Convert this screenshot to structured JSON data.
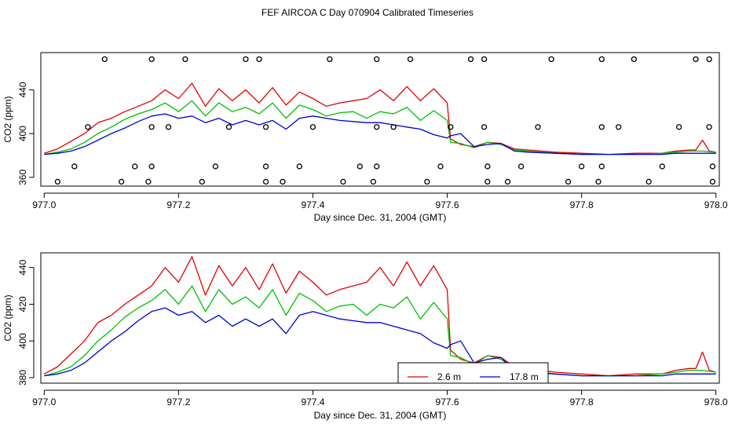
{
  "title": "FEF AIRCOA C  Day 070904  Calibrated Timeseries",
  "colors": {
    "red": "#e00000",
    "green": "#00c000",
    "blue": "#0000d0",
    "axis": "#000000"
  },
  "chart_data": [
    {
      "type": "line",
      "panel": "top",
      "xlabel": "Day since Dec. 31, 2004 (GMT)",
      "ylabel": "CO2 (ppm)",
      "xlim": [
        976.995,
        978.005
      ],
      "ylim": [
        352,
        474
      ],
      "x_ticks": [
        977.0,
        977.2,
        977.4,
        977.6,
        977.8,
        978.0
      ],
      "x_tick_labels": [
        "977.0",
        "977.2",
        "977.4",
        "977.6",
        "977.8",
        "978.0"
      ],
      "y_ticks": [
        360,
        400,
        440
      ],
      "y_tick_labels": [
        "360",
        "400",
        "440"
      ],
      "marker_rows_ppm": {
        "high": 468,
        "mid": 406,
        "low_a": 370,
        "low_b": 356
      },
      "markers": {
        "high": [
          977.09,
          977.16,
          977.21,
          977.3,
          977.32,
          977.425,
          977.495,
          977.545,
          977.635,
          977.655,
          977.755,
          977.83,
          977.878,
          977.97,
          977.99
        ],
        "mid": [
          977.065,
          977.16,
          977.185,
          977.275,
          977.33,
          977.4,
          977.495,
          977.52,
          977.605,
          977.655,
          977.735,
          977.83,
          977.855,
          977.945,
          977.99
        ],
        "low_a": [
          977.045,
          977.135,
          977.16,
          977.255,
          977.33,
          977.38,
          977.47,
          977.495,
          977.59,
          977.66,
          977.71,
          977.8,
          977.83,
          977.92,
          977.995
        ],
        "low_b": [
          977.02,
          977.115,
          977.155,
          977.235,
          977.33,
          977.355,
          977.445,
          977.49,
          977.57,
          977.66,
          977.69,
          977.78,
          977.825,
          977.9,
          977.995
        ]
      }
    },
    {
      "type": "line",
      "panel": "bottom",
      "xlabel": "Day since Dec. 31, 2004 (GMT)",
      "ylabel": "CO2 (ppm)",
      "xlim": [
        976.995,
        978.005
      ],
      "ylim": [
        377,
        448
      ],
      "x_ticks": [
        977.0,
        977.2,
        977.4,
        977.6,
        977.8,
        978.0
      ],
      "x_tick_labels": [
        "977.0",
        "977.2",
        "977.4",
        "977.6",
        "977.8",
        "978.0"
      ],
      "y_ticks": [
        380,
        400,
        420,
        440
      ],
      "y_tick_labels": [
        "380",
        "400",
        "420",
        "440"
      ],
      "legend": {
        "position": "bottom-center",
        "entries": [
          {
            "name": "2.6 m",
            "color": "#e00000"
          },
          {
            "name": "17.8 m",
            "color": "#0000d0"
          }
        ]
      }
    }
  ],
  "series": [
    {
      "name": "2.6 m",
      "color": "#e00000",
      "x": [
        977.0,
        977.02,
        977.04,
        977.06,
        977.08,
        977.1,
        977.12,
        977.14,
        977.16,
        977.18,
        977.2,
        977.22,
        977.24,
        977.26,
        977.28,
        977.3,
        977.32,
        977.34,
        977.36,
        977.38,
        977.4,
        977.42,
        977.44,
        977.46,
        977.48,
        977.5,
        977.52,
        977.54,
        977.56,
        977.58,
        977.6,
        977.605,
        977.62,
        977.64,
        977.66,
        977.68,
        977.7,
        977.72,
        977.76,
        977.8,
        977.84,
        977.88,
        977.92,
        977.94,
        977.96,
        977.97,
        977.98,
        977.99,
        978.0
      ],
      "y": [
        382,
        386,
        393,
        400,
        410,
        414,
        420,
        425,
        430,
        440,
        432,
        446,
        425,
        441,
        430,
        440,
        428,
        442,
        426,
        438,
        432,
        425,
        428,
        430,
        432,
        440,
        430,
        443,
        430,
        441,
        428,
        395,
        390,
        388,
        392,
        391,
        386,
        385,
        383,
        382,
        381,
        382,
        382,
        384,
        385,
        385,
        394,
        384,
        383
      ]
    },
    {
      "name": "green",
      "color": "#00c000",
      "x": [
        977.0,
        977.02,
        977.04,
        977.06,
        977.08,
        977.1,
        977.12,
        977.14,
        977.16,
        977.18,
        977.2,
        977.22,
        977.24,
        977.26,
        977.28,
        977.3,
        977.32,
        977.34,
        977.36,
        977.38,
        977.4,
        977.42,
        977.44,
        977.46,
        977.48,
        977.5,
        977.52,
        977.54,
        977.56,
        977.58,
        977.6,
        977.605,
        977.62,
        977.64,
        977.66,
        977.68,
        977.7,
        977.72,
        977.76,
        977.8,
        977.84,
        977.88,
        977.92,
        977.94,
        977.96,
        977.98,
        978.0
      ],
      "y": [
        381,
        383,
        386,
        392,
        400,
        406,
        413,
        418,
        422,
        428,
        420,
        430,
        416,
        428,
        420,
        424,
        418,
        428,
        414,
        426,
        422,
        416,
        419,
        420,
        414,
        420,
        418,
        424,
        412,
        421,
        412,
        392,
        391,
        387,
        392,
        390,
        385,
        384,
        382,
        381,
        381,
        381,
        382,
        383,
        384,
        384,
        383
      ]
    },
    {
      "name": "17.8 m",
      "color": "#0000d0",
      "x": [
        977.0,
        977.02,
        977.04,
        977.06,
        977.08,
        977.1,
        977.12,
        977.14,
        977.16,
        977.18,
        977.2,
        977.22,
        977.24,
        977.26,
        977.28,
        977.3,
        977.32,
        977.34,
        977.36,
        977.38,
        977.4,
        977.42,
        977.44,
        977.46,
        977.48,
        977.5,
        977.52,
        977.54,
        977.56,
        977.58,
        977.6,
        977.605,
        977.62,
        977.64,
        977.66,
        977.68,
        977.7,
        977.72,
        977.76,
        977.8,
        977.84,
        977.88,
        977.92,
        977.94,
        977.96,
        977.98,
        978.0
      ],
      "y": [
        381,
        382,
        384,
        388,
        394,
        400,
        405,
        411,
        416,
        418,
        414,
        416,
        410,
        414,
        408,
        412,
        408,
        412,
        404,
        414,
        416,
        414,
        412,
        411,
        410,
        410,
        408,
        406,
        404,
        399,
        396,
        398,
        400,
        388,
        390,
        391,
        384,
        383,
        382,
        381,
        381,
        381,
        381,
        382,
        382,
        382,
        382
      ]
    }
  ]
}
